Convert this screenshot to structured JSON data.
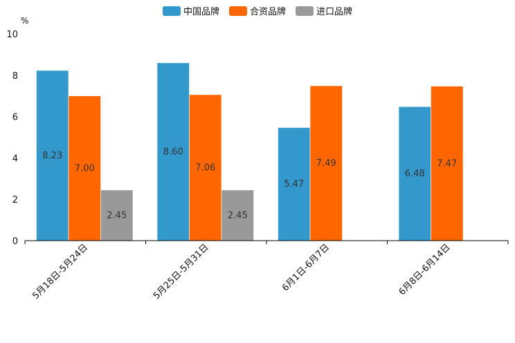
{
  "chart_data": {
    "type": "bar",
    "title": "",
    "ylabel": "%",
    "xlabel": "",
    "ylim": [
      0,
      10
    ],
    "yticks": [
      0,
      2,
      4,
      6,
      8,
      10
    ],
    "legend_position": "top-center",
    "categories": [
      "5月18日-5月24日",
      "5月25日-5月31日",
      "6月1日-6月7日",
      "6月8日-6月14日"
    ],
    "series": [
      {
        "name": "中国品牌",
        "color": "#3399cc",
        "values": [
          8.23,
          8.6,
          5.47,
          6.48
        ],
        "labels": [
          "8.23",
          "8.60",
          "5.47",
          "6.48"
        ]
      },
      {
        "name": "合资品牌",
        "color": "#ff6600",
        "values": [
          7.0,
          7.06,
          7.49,
          7.47
        ],
        "labels": [
          "7.00",
          "7.06",
          "7.49",
          "7.47"
        ]
      },
      {
        "name": "进口品牌",
        "color": "#999999",
        "values": [
          2.45,
          2.45,
          null,
          null
        ],
        "labels": [
          "2.45",
          "2.45",
          null,
          null
        ]
      }
    ]
  }
}
